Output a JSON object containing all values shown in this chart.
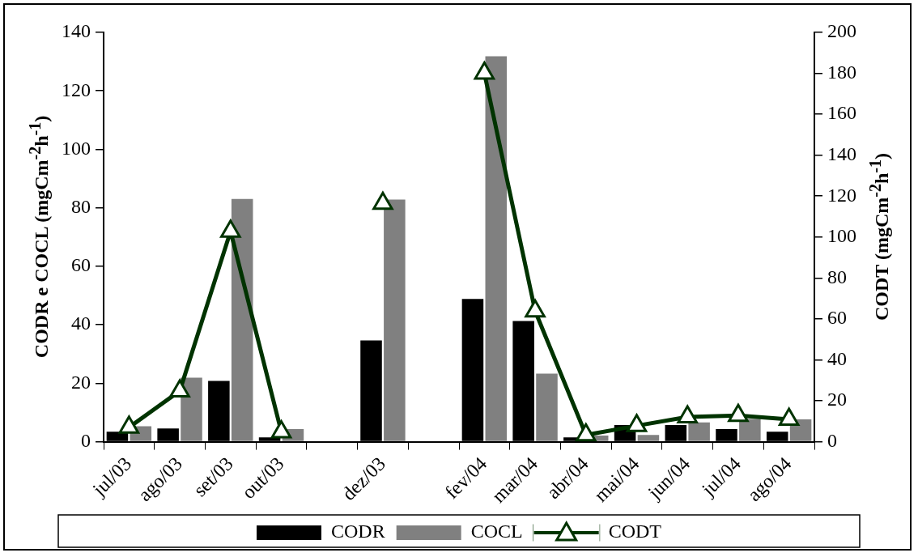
{
  "chart_data": {
    "type": "bar",
    "categories": [
      "jul/03",
      "ago/03",
      "set/03",
      "out/03",
      null,
      "dez/03",
      null,
      "fev/04",
      "mar/04",
      "abr/04",
      "mai/04",
      "jun/04",
      "jul/04",
      "ago/04"
    ],
    "series": [
      {
        "name": "CODR",
        "color": "#000000",
        "values": [
          3.4,
          4.5,
          20.8,
          1.5,
          null,
          34.6,
          null,
          48.8,
          41.3,
          1.5,
          5.7,
          5.7,
          4.3,
          3.4
        ]
      },
      {
        "name": "COCL",
        "color": "#808080",
        "values": [
          5.3,
          21.9,
          83,
          4.3,
          null,
          82.8,
          null,
          131.8,
          23.3,
          2.1,
          2.3,
          6.6,
          7.8,
          7.6
        ]
      },
      {
        "name": "CODT",
        "type": "line",
        "axis": "y2",
        "color": "#003300",
        "values": [
          7,
          24.8,
          102.8,
          4.8,
          null,
          116.4,
          null,
          180,
          63.8,
          3.3,
          7.8,
          12.1,
          12.8,
          10.9
        ]
      }
    ],
    "ylabel": "CODR e COCL (mgCm$^{-2}$h$^{-1}$)",
    "y2label": "CODT (mgCm$^{-2}$h$^{-1}$)",
    "ylim": [
      0,
      140
    ],
    "yticks": [
      0,
      20,
      40,
      60,
      80,
      100,
      120,
      140
    ],
    "y2lim": [
      0,
      200
    ],
    "y2ticks": [
      0,
      20,
      40,
      60,
      80,
      100,
      120,
      140,
      160,
      180,
      200
    ],
    "marker": "triangle",
    "legend": "bottom",
    "grid": false
  }
}
